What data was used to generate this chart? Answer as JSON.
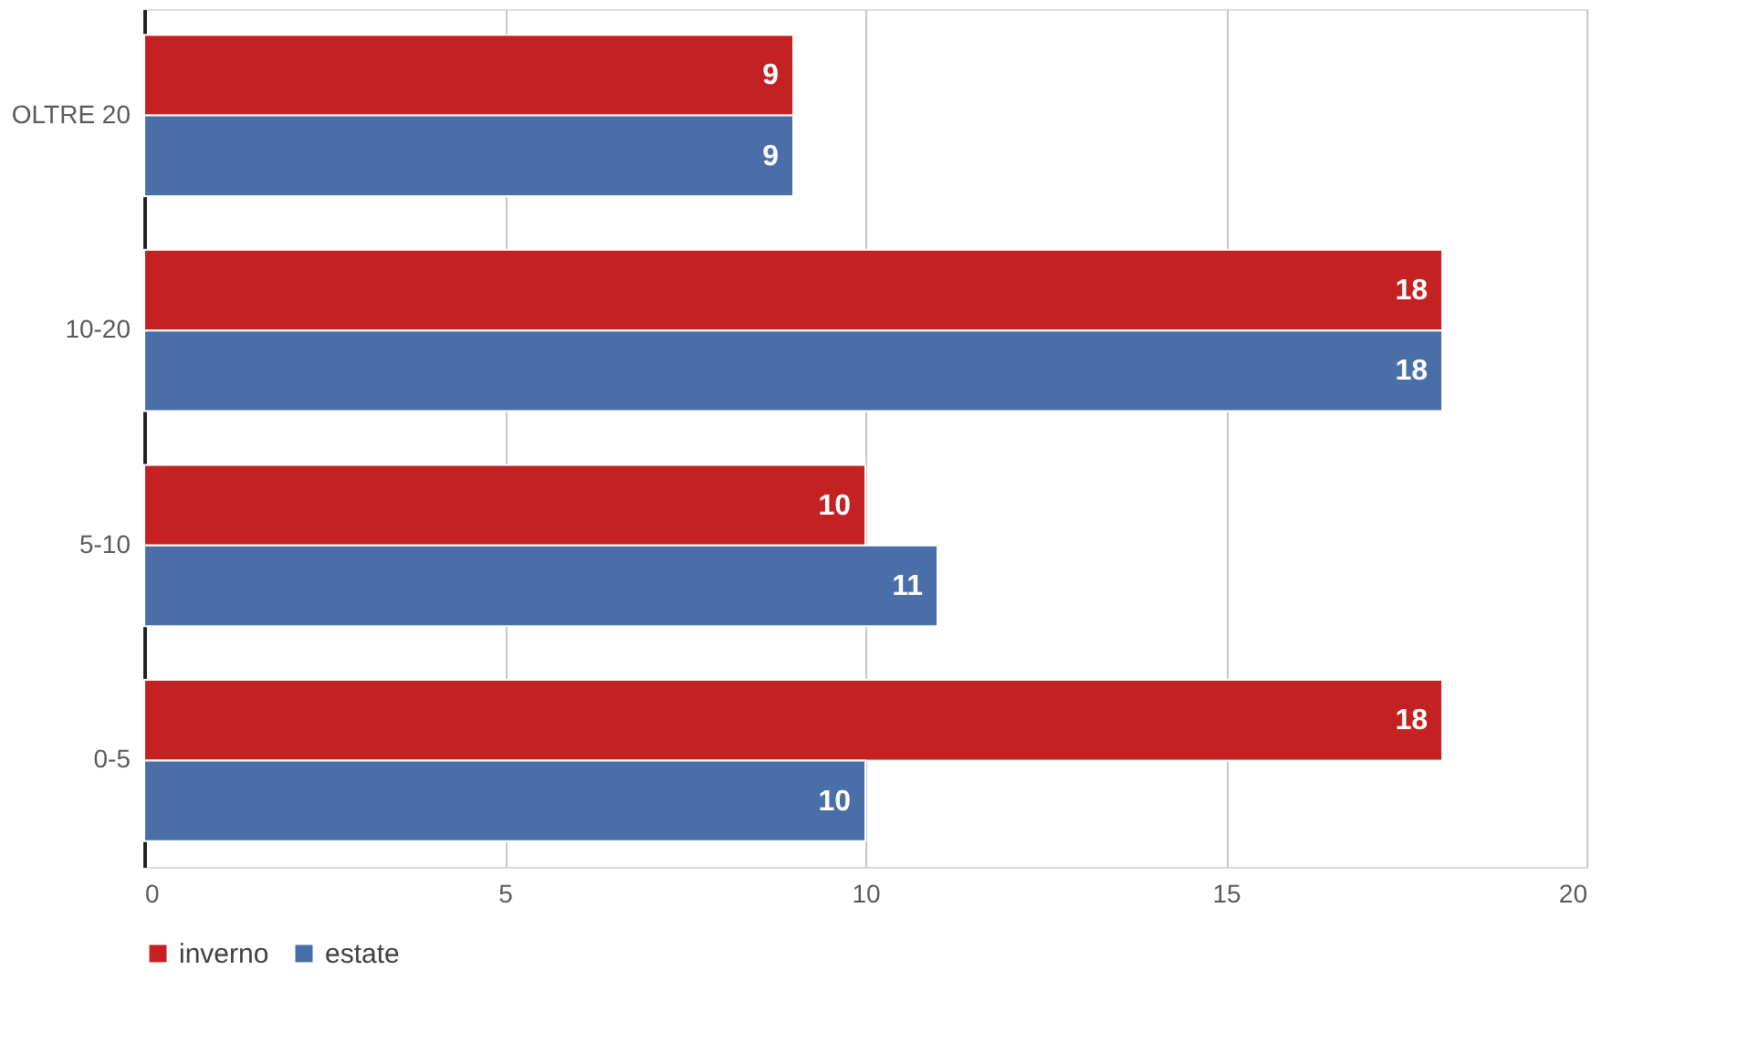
{
  "chart_data": {
    "type": "bar",
    "orientation": "horizontal",
    "categories": [
      "OLTRE 20",
      "10-20",
      "5-10",
      "0-5"
    ],
    "series": [
      {
        "name": "inverno",
        "color": "#c42222",
        "values": [
          9,
          18,
          10,
          18
        ]
      },
      {
        "name": "estate",
        "color": "#4a6fa8",
        "values": [
          9,
          18,
          11,
          10
        ]
      }
    ],
    "xlim": [
      0,
      20
    ],
    "xticks": [
      0,
      5,
      10,
      15,
      20
    ],
    "grid": "x",
    "legend": "bottom",
    "data_labels": true
  }
}
